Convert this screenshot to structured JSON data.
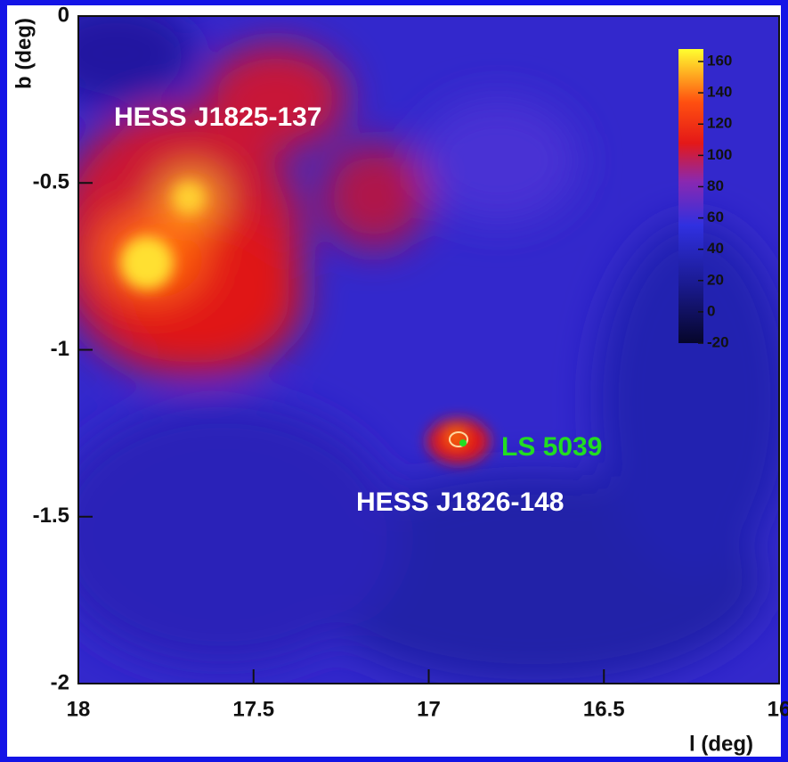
{
  "chart_data": {
    "type": "skymap",
    "xlabel": "l (deg)",
    "ylabel": "b (deg)",
    "xlim": [
      18,
      16
    ],
    "xticks": [
      18,
      17.5,
      17,
      16.5,
      16
    ],
    "ylim": [
      -2,
      0
    ],
    "yticks": [
      0,
      -0.5,
      -1,
      -1.5,
      -2
    ],
    "colorbar": {
      "lim": [
        -20,
        168
      ],
      "ticks": [
        160,
        140,
        120,
        100,
        80,
        60,
        40,
        20,
        0,
        -20
      ]
    },
    "annotations": [
      {
        "text": "HESS J1825-137",
        "color": "#ffffff"
      },
      {
        "text": "LS 5039",
        "color": "#22dd22"
      },
      {
        "text": "HESS J1826-148",
        "color": "#ffffff"
      }
    ]
  }
}
